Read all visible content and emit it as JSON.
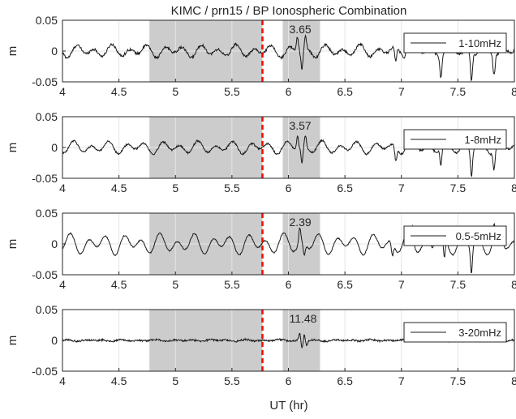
{
  "figure": {
    "title": "KIMC / prn15 / BP Ionospheric Combination",
    "xlabel": "UT (hr)"
  },
  "colors": {
    "trace": "#1a1a1a",
    "shade": "#cccccc",
    "marker": "#ff0000",
    "grid": "#e5e5e5",
    "axis": "#262626"
  },
  "chart_data": [
    {
      "type": "line",
      "legend": "1-10mHz",
      "legend_position": "top-right",
      "ylabel": "m",
      "xlim": [
        4,
        8
      ],
      "ylim": [
        -0.05,
        0.05
      ],
      "xticks": [
        "4",
        "4.5",
        "5",
        "5.5",
        "6",
        "6.5",
        "7",
        "7.5",
        "8"
      ],
      "yticks": [
        "0.05",
        "0",
        "-0.05"
      ],
      "grid": true,
      "shaded_windows": [
        [
          4.77,
          5.77
        ],
        [
          5.95,
          6.28
        ]
      ],
      "marker_x": 5.77,
      "annotation": {
        "text": "3.65",
        "x": 6.05
      },
      "amplitude": 0.011,
      "noise": 0.002,
      "spikes": [
        [
          6.08,
          0.025
        ],
        [
          6.12,
          -0.03
        ],
        [
          6.15,
          0.02
        ],
        [
          7.35,
          -0.035
        ],
        [
          7.62,
          -0.045
        ],
        [
          7.82,
          -0.03
        ],
        [
          6.95,
          -0.025
        ],
        [
          7.05,
          0.02
        ]
      ]
    },
    {
      "type": "line",
      "legend": "1-8mHz",
      "legend_position": "top-right",
      "ylabel": "m",
      "xlim": [
        4,
        8
      ],
      "ylim": [
        -0.05,
        0.05
      ],
      "xticks": [
        "4",
        "4.5",
        "5",
        "5.5",
        "6",
        "6.5",
        "7",
        "7.5",
        "8"
      ],
      "yticks": [
        "0.05",
        "0",
        "-0.05"
      ],
      "grid": true,
      "shaded_windows": [
        [
          4.77,
          5.77
        ],
        [
          5.95,
          6.28
        ]
      ],
      "marker_x": 5.77,
      "annotation": {
        "text": "3.57",
        "x": 6.05
      },
      "amplitude": 0.011,
      "noise": 0.0015,
      "spikes": [
        [
          6.08,
          0.022
        ],
        [
          6.12,
          -0.028
        ],
        [
          6.15,
          0.018
        ],
        [
          7.35,
          -0.03
        ],
        [
          7.62,
          -0.045
        ],
        [
          7.82,
          -0.03
        ],
        [
          6.95,
          -0.022
        ],
        [
          7.05,
          0.018
        ]
      ]
    },
    {
      "type": "line",
      "legend": "0.5-5mHz",
      "legend_position": "top-right",
      "ylabel": "m",
      "xlim": [
        4,
        8
      ],
      "ylim": [
        -0.05,
        0.05
      ],
      "xticks": [
        "4",
        "4.5",
        "5",
        "5.5",
        "6",
        "6.5",
        "7",
        "7.5",
        "8"
      ],
      "yticks": [
        "0.05",
        "0",
        "-0.05"
      ],
      "grid": true,
      "shaded_windows": [
        [
          4.77,
          5.77
        ],
        [
          5.95,
          6.28
        ]
      ],
      "marker_x": 5.77,
      "annotation": {
        "text": "2.39",
        "x": 6.05
      },
      "amplitude": 0.018,
      "noise": 0.001,
      "spikes": [
        [
          6.1,
          0.025
        ],
        [
          6.14,
          -0.02
        ],
        [
          7.3,
          0.03
        ],
        [
          7.38,
          -0.035
        ],
        [
          7.62,
          -0.045
        ],
        [
          7.82,
          0.025
        ],
        [
          6.92,
          -0.02
        ],
        [
          7.1,
          0.025
        ]
      ]
    },
    {
      "type": "line",
      "legend": "3-20mHz",
      "legend_position": "top-right",
      "ylabel": "m",
      "xlim": [
        4,
        8
      ],
      "ylim": [
        -0.05,
        0.05
      ],
      "xticks": [
        "4",
        "4.5",
        "5",
        "5.5",
        "6",
        "6.5",
        "7",
        "7.5",
        "8"
      ],
      "yticks": [
        "0.05",
        "0",
        "-0.05"
      ],
      "grid": true,
      "shaded_windows": [
        [
          4.77,
          5.77
        ],
        [
          5.95,
          6.28
        ]
      ],
      "marker_x": 5.77,
      "annotation": {
        "text": "11.48",
        "x": 6.05
      },
      "amplitude": 0.0015,
      "noise": 0.0015,
      "spikes": [
        [
          6.1,
          0.012
        ],
        [
          6.12,
          -0.014
        ],
        [
          6.14,
          0.01
        ],
        [
          6.16,
          -0.008
        ]
      ]
    }
  ]
}
